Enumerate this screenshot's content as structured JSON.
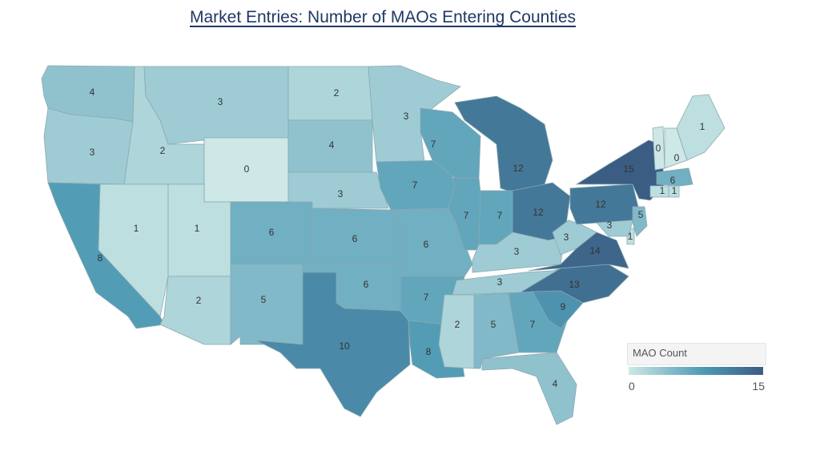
{
  "title": "Market Entries: Number of MAOs Entering Counties",
  "legend": {
    "title": "MAO Count",
    "min": "0",
    "max": "15",
    "color_min": "#cde8e6",
    "color_mid": "#4f9ab5",
    "color_max": "#3b5d83"
  },
  "states": [
    {
      "code": "WA",
      "value": 4
    },
    {
      "code": "OR",
      "value": 3
    },
    {
      "code": "CA",
      "value": 8
    },
    {
      "code": "ID",
      "value": 2
    },
    {
      "code": "NV",
      "value": 1
    },
    {
      "code": "MT",
      "value": 3
    },
    {
      "code": "WY",
      "value": 0
    },
    {
      "code": "UT",
      "value": 1
    },
    {
      "code": "AZ",
      "value": 2
    },
    {
      "code": "CO",
      "value": 6
    },
    {
      "code": "NM",
      "value": 5
    },
    {
      "code": "ND",
      "value": 2
    },
    {
      "code": "SD",
      "value": 4
    },
    {
      "code": "NE",
      "value": 3
    },
    {
      "code": "KS",
      "value": 6
    },
    {
      "code": "OK",
      "value": 6
    },
    {
      "code": "TX",
      "value": 10
    },
    {
      "code": "MN",
      "value": 3
    },
    {
      "code": "IA",
      "value": 7
    },
    {
      "code": "MO",
      "value": 6
    },
    {
      "code": "AR",
      "value": 7
    },
    {
      "code": "LA",
      "value": 8
    },
    {
      "code": "WI",
      "value": 7
    },
    {
      "code": "IL",
      "value": 7
    },
    {
      "code": "MI",
      "value": 12
    },
    {
      "code": "IN",
      "value": 7
    },
    {
      "code": "OH",
      "value": 12
    },
    {
      "code": "KY",
      "value": 3
    },
    {
      "code": "TN",
      "value": 3
    },
    {
      "code": "MS",
      "value": 2
    },
    {
      "code": "AL",
      "value": 5
    },
    {
      "code": "GA",
      "value": 7
    },
    {
      "code": "FL",
      "value": 4
    },
    {
      "code": "SC",
      "value": 9
    },
    {
      "code": "NC",
      "value": 13
    },
    {
      "code": "VA",
      "value": 14
    },
    {
      "code": "WV",
      "value": 3
    },
    {
      "code": "PA",
      "value": 12
    },
    {
      "code": "NY",
      "value": 15
    },
    {
      "code": "VT",
      "value": 0
    },
    {
      "code": "NH",
      "value": 0
    },
    {
      "code": "ME",
      "value": 1
    },
    {
      "code": "MA",
      "value": 6
    },
    {
      "code": "RI",
      "value": 1
    },
    {
      "code": "CT",
      "value": 1
    },
    {
      "code": "NJ",
      "value": 5
    },
    {
      "code": "DE",
      "value": 1
    },
    {
      "code": "MD",
      "value": 3
    }
  ]
}
